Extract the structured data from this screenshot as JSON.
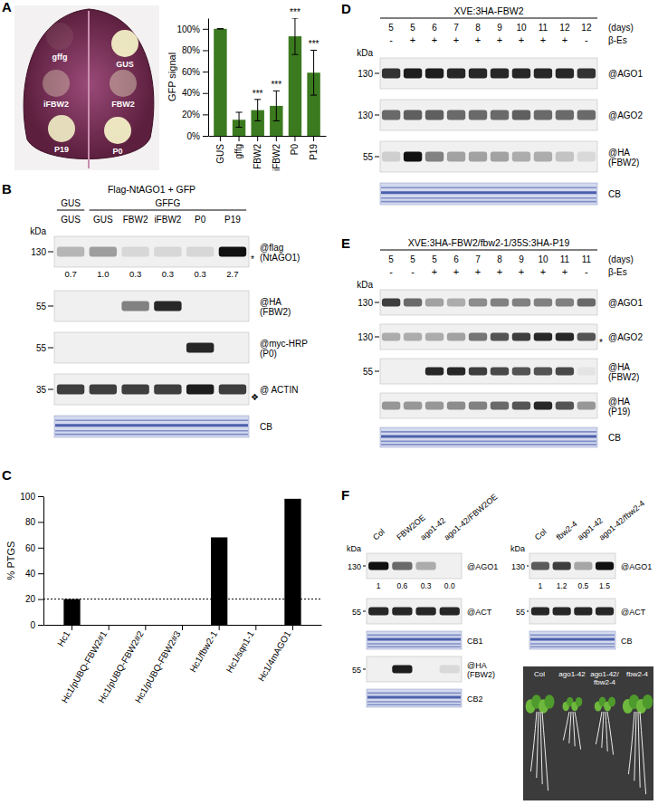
{
  "panel_labels": [
    "A",
    "B",
    "C",
    "D",
    "E",
    "F"
  ],
  "chart_data": [
    {
      "type": "bar",
      "ylabel": "GFP signal",
      "categories": [
        "GUS",
        "gffg",
        "FBW2",
        "iFBW2",
        "P0",
        "P19"
      ],
      "values": [
        100,
        15,
        24,
        28,
        93,
        59
      ],
      "error": [
        0,
        7,
        10,
        14,
        17,
        21
      ],
      "annotations": [
        null,
        null,
        "***",
        "***",
        "***",
        "***"
      ],
      "color": "#3b7a1f",
      "ylim": [
        0,
        110
      ],
      "yticks": [
        {
          "value": 0,
          "label": "0%"
        },
        {
          "value": 20,
          "label": "20%"
        },
        {
          "value": 40,
          "label": "40%"
        },
        {
          "value": 60,
          "label": "60%"
        },
        {
          "value": 80,
          "label": "80%"
        },
        {
          "value": 100,
          "label": "100%"
        }
      ]
    },
    {
      "type": "bar",
      "ylabel": "% PTGS",
      "categories": [
        "Hc1",
        "Hc1/pUBQ-FBW2#1",
        "Hc1/pUBQ-FBW2#2",
        "Hc1/pUBQ-FBW2#3",
        "Hc1/fbw2-1",
        "Hc1/sqn1-1",
        "Hc1/4mAGO1"
      ],
      "values": [
        20,
        0,
        0,
        0,
        68,
        0,
        98
      ],
      "color": "#000000",
      "ylim": [
        0,
        100
      ],
      "yticks": [
        0,
        20,
        40,
        60,
        80,
        100
      ],
      "threshold": 20
    }
  ],
  "leaf_photo": {
    "labels": [
      "gffg",
      "GUS",
      "iFBW2",
      "FBW2",
      "P19",
      "P0"
    ]
  },
  "seedling_photo": {
    "labels": [
      "Col",
      "ago1-42",
      "ago1-42/fbw2-4",
      "fbw2-4"
    ]
  },
  "blots": [
    {
      "header": "Flag-NtAGO1 + GFP",
      "groups": [
        {
          "label": "GUS",
          "lanes": 1
        },
        {
          "label": "GFFG",
          "lanes": 5
        }
      ],
      "lanes": [
        "GUS",
        "GUS",
        "FBW2",
        "iFBW2",
        "P0",
        "P19"
      ],
      "kda_label": "kDa",
      "rows": [
        {
          "label": "@flag",
          "sublabel": "(NtAGO1)",
          "kda": 130,
          "quant": [
            0.7,
            1.0,
            0.3,
            0.3,
            0.3,
            2.7
          ],
          "quant_labels": [
            "0.7",
            "1.0",
            "0.3",
            "0.3",
            "0.3",
            "2.7"
          ],
          "note": "*"
        },
        {
          "label": "@HA",
          "sublabel": "(FBW2)",
          "kda": 55,
          "intensity": [
            0,
            0,
            0.5,
            0.9,
            0,
            0
          ]
        },
        {
          "label": "@myc-HRP",
          "sublabel": "(P0)",
          "kda": 55,
          "intensity": [
            0,
            0,
            0,
            0,
            0.9,
            0
          ]
        },
        {
          "label": "@ ACTIN",
          "kda": 35,
          "intensity": [
            0.8,
            0.8,
            0.8,
            0.8,
            0.95,
            0.8
          ],
          "note": "❖"
        },
        {
          "label": "CB",
          "stain": true
        }
      ]
    },
    {
      "title": "XVE:3HA-FBW2",
      "days_label": "(days)",
      "days": [
        5,
        5,
        6,
        7,
        8,
        9,
        10,
        11,
        12,
        12
      ],
      "treatment_label": "β-Es",
      "treatment": [
        "-",
        "+",
        "+",
        "+",
        "+",
        "+",
        "+",
        "+",
        "+",
        "-"
      ],
      "kda_label": "kDa",
      "rows": [
        {
          "label": "@AGO1",
          "kda": 130,
          "intensity": [
            0.85,
            0.95,
            0.95,
            0.9,
            0.9,
            0.9,
            0.9,
            0.9,
            0.9,
            0.85
          ]
        },
        {
          "label": "@AGO2",
          "kda": 130,
          "intensity": [
            0.6,
            0.65,
            0.65,
            0.6,
            0.6,
            0.6,
            0.65,
            0.6,
            0.6,
            0.6
          ]
        },
        {
          "label": "@HA",
          "sublabel": "(FBW2)",
          "kda": 55,
          "intensity": [
            0.15,
            1,
            0.5,
            0.35,
            0.35,
            0.35,
            0.3,
            0.3,
            0.2,
            0.1
          ]
        },
        {
          "label": "CB",
          "stain": true
        }
      ]
    },
    {
      "title": "XVE:3HA-FBW2/fbw2-1/35S:3HA-P19",
      "days_label": "(days)",
      "days": [
        5,
        5,
        5,
        6,
        7,
        8,
        9,
        10,
        11,
        11
      ],
      "treatment_label": "β-Es",
      "treatment": [
        "-",
        "-",
        "+",
        "+",
        "+",
        "+",
        "+",
        "+",
        "+",
        "-"
      ],
      "kda_label": "kDa",
      "rows": [
        {
          "label": "@AGO1",
          "kda": 130,
          "intensity": [
            0.8,
            0.6,
            0.35,
            0.3,
            0.45,
            0.5,
            0.5,
            0.5,
            0.5,
            0.6
          ]
        },
        {
          "label": "@AGO2",
          "kda": 130,
          "intensity": [
            0.3,
            0.3,
            0.3,
            0.35,
            0.55,
            0.7,
            0.8,
            0.9,
            0.9,
            0.7
          ],
          "note": "*"
        },
        {
          "label": "@HA",
          "sublabel": "(FBW2)",
          "kda": 55,
          "intensity": [
            0,
            0,
            0.9,
            0.9,
            0.8,
            0.75,
            0.7,
            0.7,
            0.75,
            0.05
          ]
        },
        {
          "label": "@HA",
          "sublabel": "(P19)",
          "intensity": [
            0.4,
            0.4,
            0.4,
            0.45,
            0.5,
            0.6,
            0.7,
            0.9,
            0.7,
            0.4
          ]
        },
        {
          "label": "CB",
          "stain": true
        }
      ]
    },
    {
      "lanes": [
        "Col",
        "FBW2OE",
        "ago1-42",
        "ago1-42/FBW2OE"
      ],
      "kda_label": "kDa",
      "rows": [
        {
          "label": "@AGO1",
          "kda": 130,
          "quant": [
            1,
            0.6,
            0.3,
            0.0
          ],
          "quant_labels": [
            "1",
            "0.6",
            "0.3",
            "0.0"
          ]
        },
        {
          "label": "@ACT",
          "kda": 55,
          "intensity": [
            0.9,
            0.9,
            0.9,
            0.9
          ]
        },
        {
          "label": "CB1",
          "stain": true
        },
        {
          "label": "@HA",
          "sublabel": "(FBW2)",
          "kda": 55,
          "intensity": [
            0,
            0.95,
            0,
            0.1
          ]
        },
        {
          "label": "CB2",
          "stain": true
        }
      ]
    },
    {
      "lanes": [
        "Col",
        "fbw2-4",
        "ago1-42",
        "ago1-42/fbw2-4"
      ],
      "kda_label": "kDa",
      "rows": [
        {
          "label": "@AGO1",
          "kda": 130,
          "quant": [
            1,
            1.2,
            0.5,
            1.5
          ],
          "quant_labels": [
            "1",
            "1.2",
            "0.5",
            "1.5"
          ]
        },
        {
          "label": "@ACT",
          "kda": 55,
          "intensity": [
            0.9,
            0.9,
            0.9,
            0.9
          ]
        },
        {
          "label": "CB",
          "stain": true
        }
      ]
    }
  ]
}
